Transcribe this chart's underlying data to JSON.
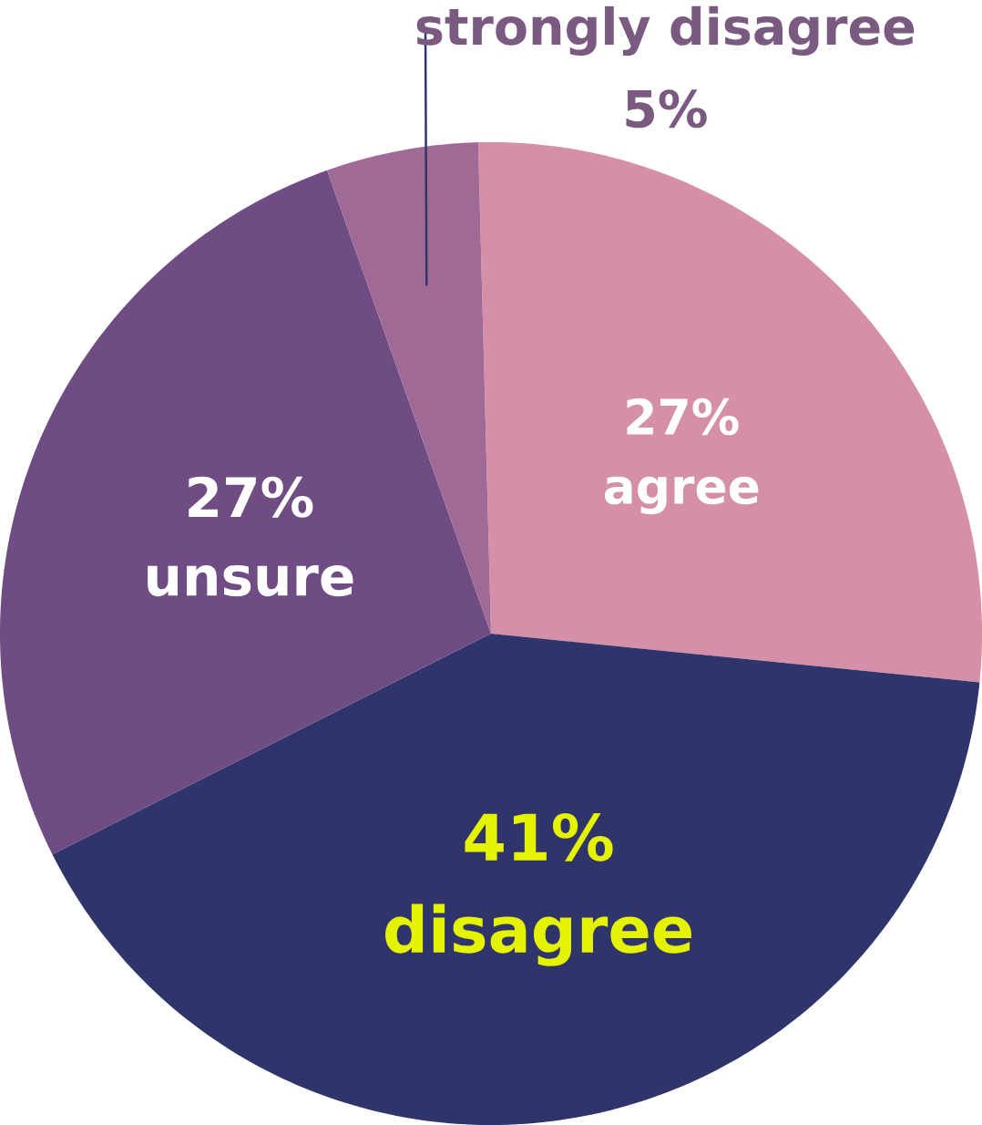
{
  "chart_data": {
    "type": "pie",
    "categories": [
      "agree",
      "disagree",
      "unsure",
      "strongly disagree"
    ],
    "values": [
      27,
      41,
      27,
      5
    ],
    "value_labels": [
      "27%",
      "41%",
      "27%",
      "5%"
    ],
    "colors": [
      "#d68fa8",
      "#2f346b",
      "#6f4c83",
      "#a06a97"
    ]
  }
}
